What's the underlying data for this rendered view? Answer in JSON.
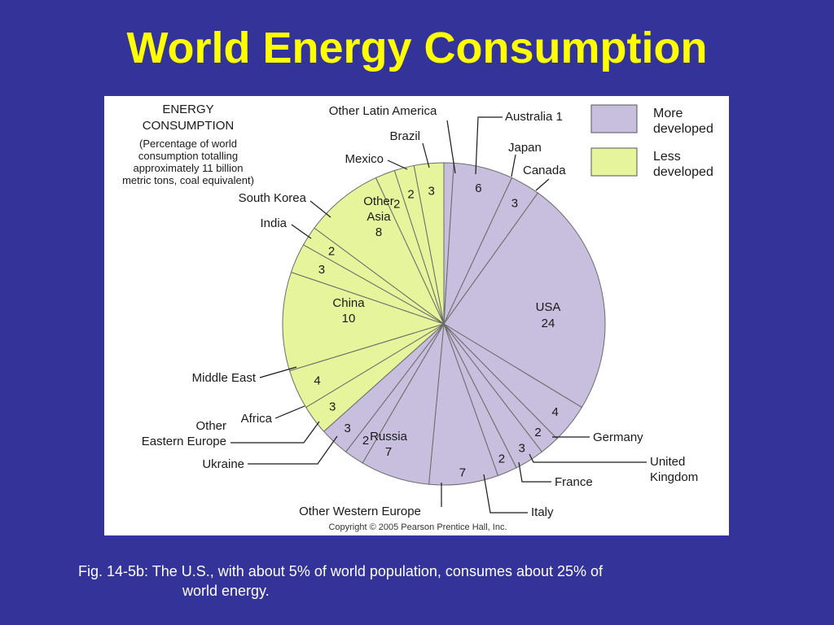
{
  "slide": {
    "title": "World Energy Consumption",
    "caption_line1": "Fig. 14-5b: The U.S., with about 5% of world population, consumes about 25% of",
    "caption_line2": "world energy."
  },
  "figure": {
    "heading_line1": "ENERGY",
    "heading_line2": "CONSUMPTION",
    "note_lines": [
      "(Percentage of world",
      "consumption totalling",
      "approximately 11 billion",
      "metric tons, coal equivalent)"
    ],
    "copyright": "Copyright © 2005 Pearson Prentice Hall, Inc."
  },
  "chart_data": {
    "type": "pie",
    "title": "ENERGY CONSUMPTION",
    "subtitle": "(Percentage of world consumption totalling approximately 11 billion metric tons, coal equivalent)",
    "start": "top, clockwise",
    "legend": {
      "placement": "top-right",
      "entries": [
        {
          "group": "more",
          "label": "More developed",
          "color": "#c8bedd"
        },
        {
          "group": "less",
          "label": "Less developed",
          "color": "#e6f59b"
        }
      ]
    },
    "slices": [
      {
        "label": "Australia",
        "value": 1,
        "group": "more"
      },
      {
        "label": "Japan",
        "value": 6,
        "group": "more"
      },
      {
        "label": "Canada",
        "value": 3,
        "group": "more"
      },
      {
        "label": "USA",
        "value": 24,
        "group": "more"
      },
      {
        "label": "Germany",
        "value": 4,
        "group": "more"
      },
      {
        "label": "United Kingdom",
        "value": 2,
        "group": "more"
      },
      {
        "label": "France",
        "value": 3,
        "group": "more"
      },
      {
        "label": "Italy",
        "value": 2,
        "group": "more"
      },
      {
        "label": "Other Western Europe",
        "value": 7,
        "group": "more"
      },
      {
        "label": "Russia",
        "value": 7,
        "group": "more"
      },
      {
        "label": "Ukraine",
        "value": 2,
        "group": "more"
      },
      {
        "label": "Other Eastern Europe",
        "value": 3,
        "group": "more"
      },
      {
        "label": "Africa",
        "value": 3,
        "group": "less"
      },
      {
        "label": "Middle East",
        "value": 4,
        "group": "less"
      },
      {
        "label": "China",
        "value": 10,
        "group": "less"
      },
      {
        "label": "India",
        "value": 3,
        "group": "less"
      },
      {
        "label": "South Korea",
        "value": 2,
        "group": "less"
      },
      {
        "label": "Other Asia",
        "value": 8,
        "group": "less"
      },
      {
        "label": "Mexico",
        "value": 2,
        "group": "less"
      },
      {
        "label": "Brazil",
        "value": 2,
        "group": "less"
      },
      {
        "label": "Other Latin America",
        "value": 3,
        "group": "less"
      }
    ]
  }
}
